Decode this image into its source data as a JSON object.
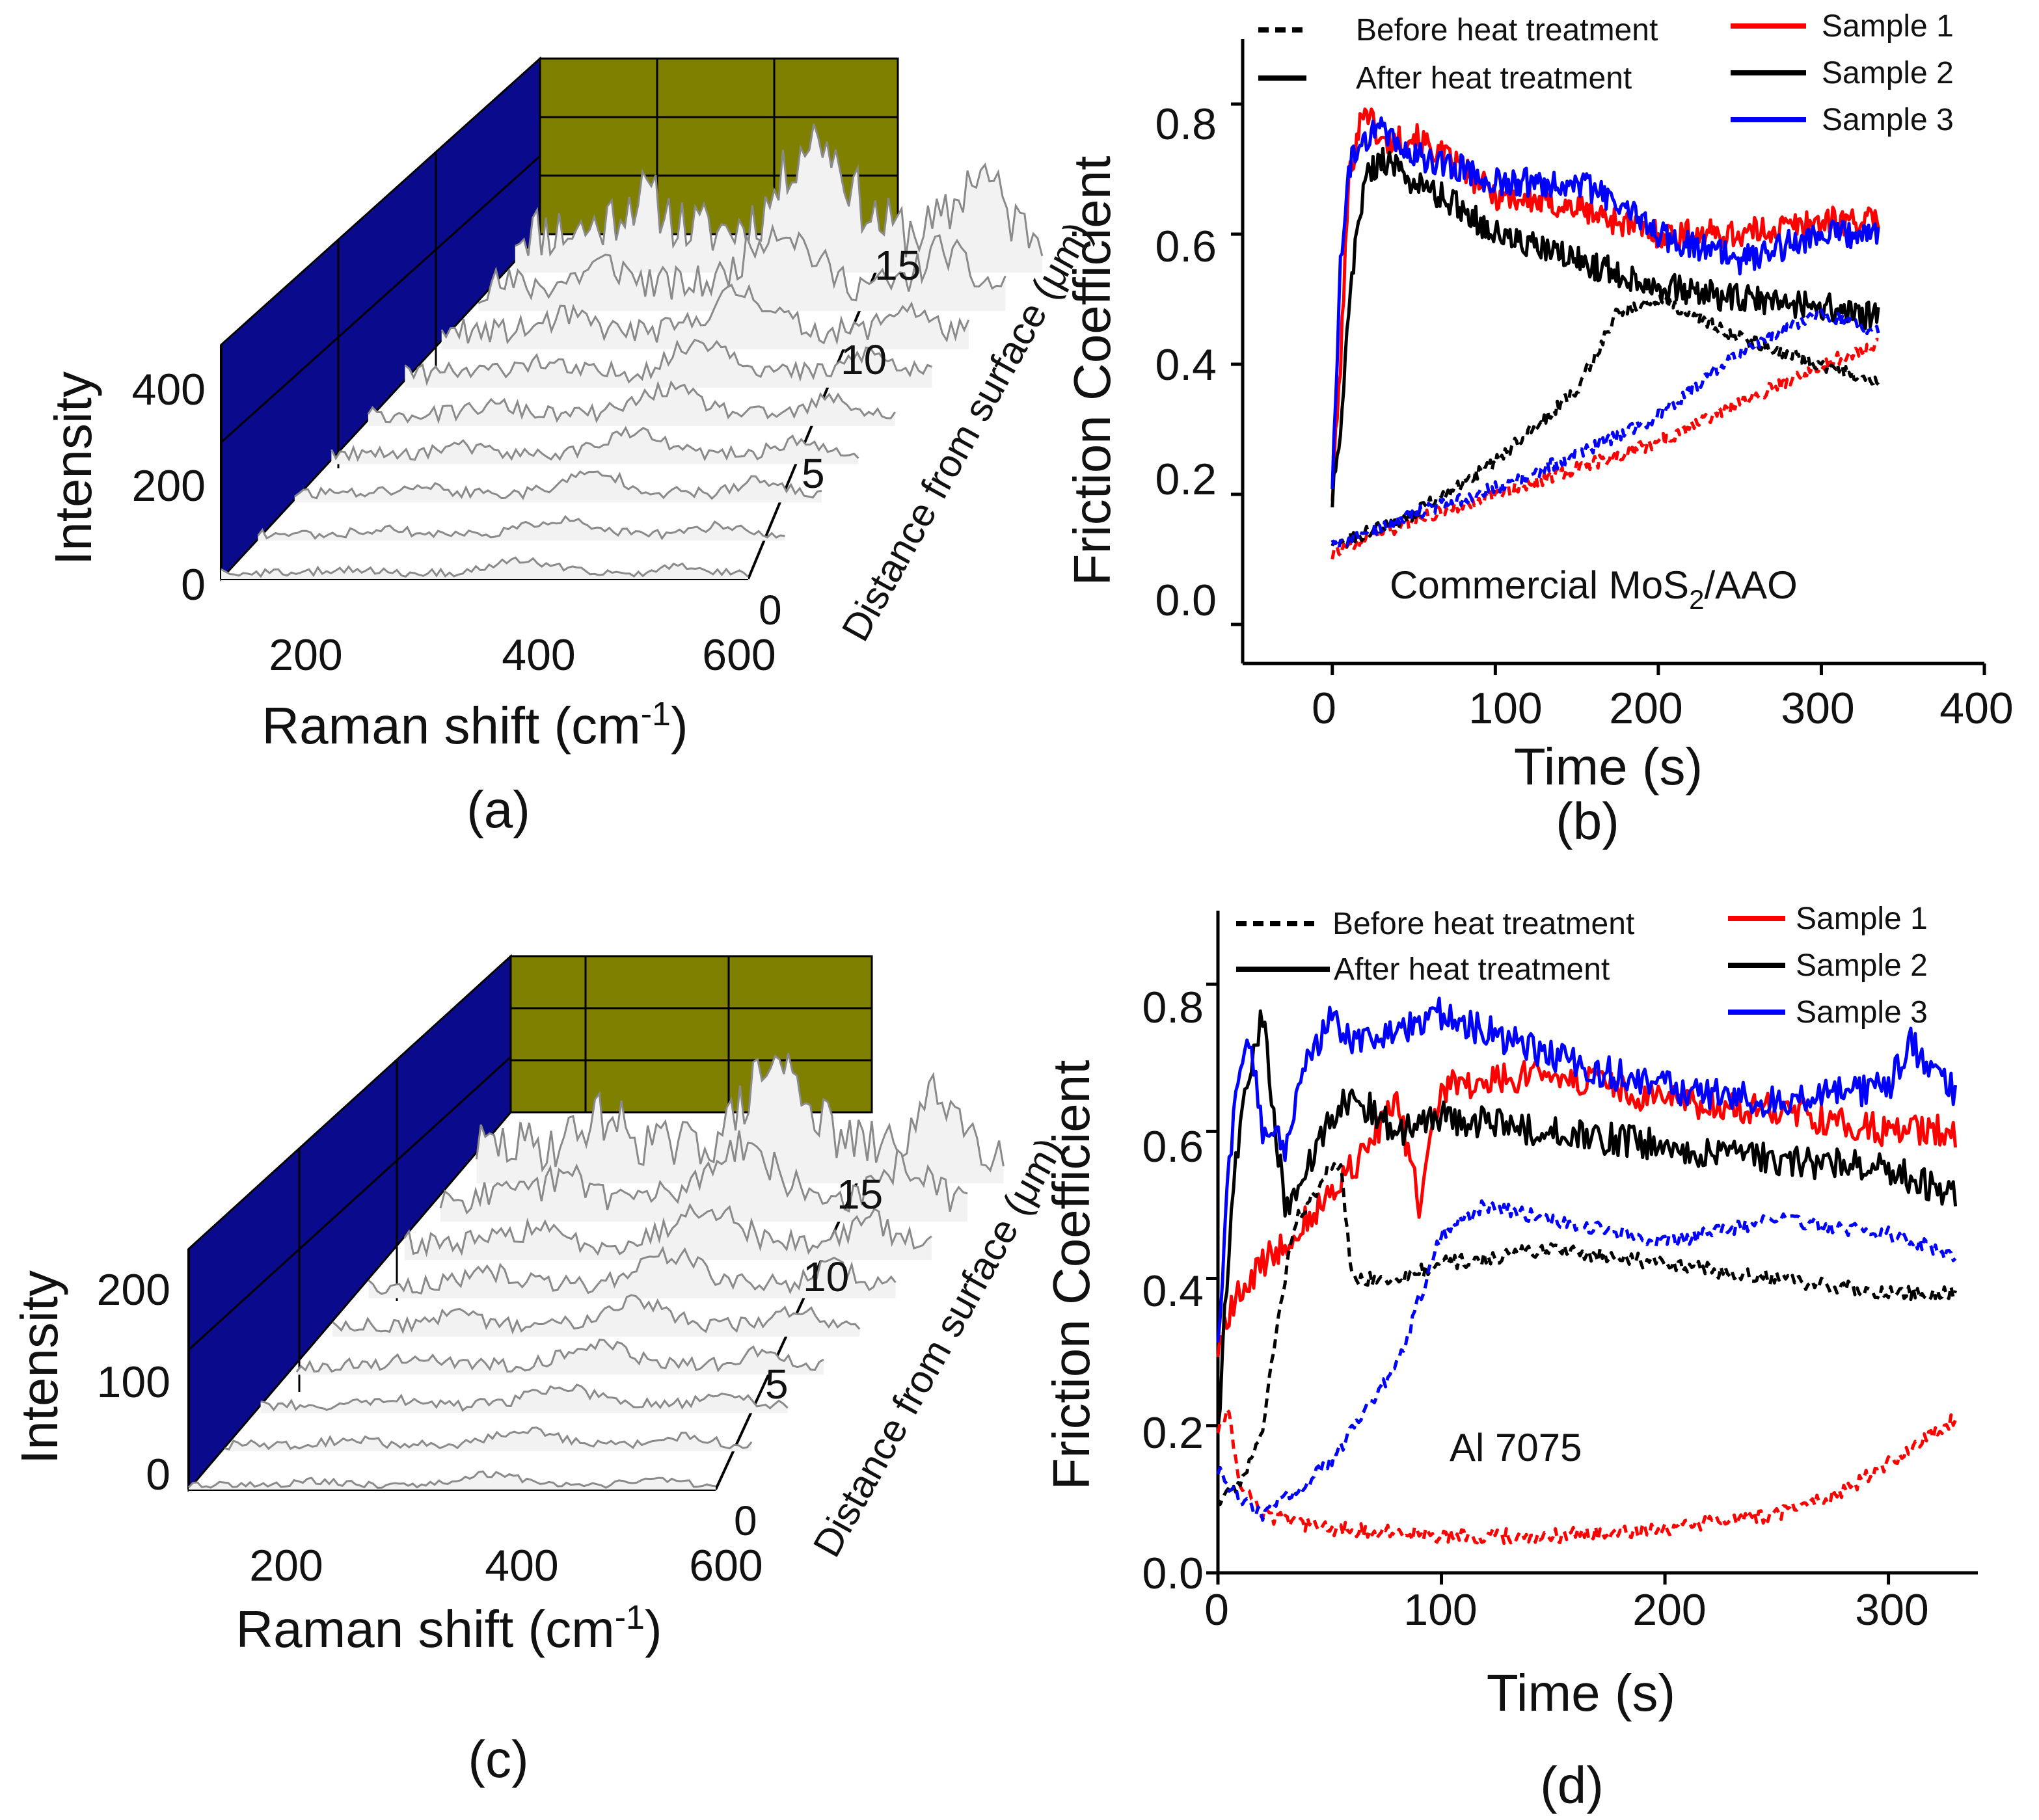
{
  "chart_data": [
    {
      "id": "a",
      "type": "waterfall-3d",
      "panel_label": "(a)",
      "xlabel": "Raman shift (cm",
      "xlabel_sup": "-1",
      "xlabel_end": ")",
      "ylabel": "Intensity",
      "zlabel": "Distance from surface (μm)",
      "xticks": [
        "200",
        "400",
        "600"
      ],
      "yticks": [
        "0",
        "200",
        "400"
      ],
      "zticks": [
        "0",
        "5",
        "10",
        "15"
      ],
      "xlim": [
        100,
        600
      ],
      "ylim": [
        0,
        500
      ],
      "zlim": [
        0,
        17
      ],
      "spectra_depths": [
        0,
        2,
        4,
        6,
        8,
        10,
        12,
        14,
        16
      ],
      "peak_scale": [
        35,
        40,
        55,
        60,
        70,
        90,
        110,
        160,
        260
      ]
    },
    {
      "id": "b",
      "type": "line",
      "panel_label": "(b)",
      "title": "",
      "annotation": "Commercial MoS",
      "annotation_sub": "2",
      "annotation_end": "/AAO",
      "xlabel": "Time (s)",
      "ylabel": "Friction Coefficient",
      "xlim": [
        -55,
        400
      ],
      "ylim": [
        -0.06,
        0.9
      ],
      "xticks": [
        "0",
        "100",
        "200",
        "300",
        "400"
      ],
      "yticks": [
        "0.0",
        "0.2",
        "0.4",
        "0.6",
        "0.8"
      ],
      "legend": {
        "line_styles": [
          "Before heat treatment",
          "After heat treatment"
        ],
        "samples": [
          "Sample 1",
          "Sample 2",
          "Sample 3"
        ]
      },
      "series": [
        {
          "name": "Sample 1",
          "treatment": "after",
          "color": "#ff0000",
          "x": [
            0,
            5,
            10,
            15,
            20,
            30,
            50,
            80,
            100,
            150,
            200,
            250,
            300,
            335
          ],
          "y": [
            0.2,
            0.4,
            0.68,
            0.75,
            0.8,
            0.74,
            0.75,
            0.7,
            0.66,
            0.64,
            0.6,
            0.6,
            0.62,
            0.62
          ]
        },
        {
          "name": "Sample 2",
          "treatment": "after",
          "color": "#000000",
          "x": [
            0,
            5,
            10,
            15,
            20,
            30,
            50,
            80,
            100,
            150,
            200,
            250,
            300,
            335
          ],
          "y": [
            0.2,
            0.3,
            0.48,
            0.6,
            0.68,
            0.72,
            0.68,
            0.64,
            0.6,
            0.56,
            0.52,
            0.5,
            0.49,
            0.47
          ]
        },
        {
          "name": "Sample 3",
          "treatment": "after",
          "color": "#0000ff",
          "x": [
            0,
            5,
            10,
            15,
            20,
            30,
            50,
            80,
            100,
            150,
            180,
            200,
            250,
            300,
            335
          ],
          "y": [
            0.2,
            0.55,
            0.7,
            0.73,
            0.75,
            0.76,
            0.72,
            0.7,
            0.68,
            0.68,
            0.64,
            0.6,
            0.56,
            0.6,
            0.6
          ]
        },
        {
          "name": "Sample 1",
          "treatment": "before",
          "color": "#ff0000",
          "x": [
            0,
            20,
            50,
            100,
            150,
            200,
            250,
            300,
            335
          ],
          "y": [
            0.11,
            0.13,
            0.16,
            0.2,
            0.24,
            0.28,
            0.34,
            0.4,
            0.43
          ]
        },
        {
          "name": "Sample 2",
          "treatment": "before",
          "color": "#000000",
          "x": [
            0,
            20,
            50,
            100,
            150,
            175,
            200,
            250,
            300,
            335
          ],
          "y": [
            0.12,
            0.14,
            0.17,
            0.25,
            0.36,
            0.48,
            0.5,
            0.44,
            0.4,
            0.37
          ]
        },
        {
          "name": "Sample 3",
          "treatment": "before",
          "color": "#0000ff",
          "x": [
            0,
            20,
            50,
            100,
            150,
            200,
            250,
            300,
            335
          ],
          "y": [
            0.12,
            0.14,
            0.17,
            0.21,
            0.26,
            0.32,
            0.42,
            0.48,
            0.45
          ]
        }
      ]
    },
    {
      "id": "c",
      "type": "waterfall-3d",
      "panel_label": "(c)",
      "xlabel": "Raman shift (cm",
      "xlabel_sup": "-1",
      "xlabel_end": ")",
      "ylabel": "Intensity",
      "zlabel": "Distance from surface (μm)",
      "xticks": [
        "200",
        "400",
        "600"
      ],
      "yticks": [
        "0",
        "100",
        "200"
      ],
      "zticks": [
        "0",
        "5",
        "10",
        "15"
      ],
      "xlim": [
        100,
        600
      ],
      "ylim": [
        0,
        250
      ],
      "zlim": [
        0,
        17
      ],
      "spectra_depths": [
        0,
        2,
        4,
        6,
        8,
        10,
        12,
        14,
        16
      ],
      "peak_scale": [
        30,
        40,
        50,
        60,
        70,
        85,
        105,
        150,
        230
      ]
    },
    {
      "id": "d",
      "type": "line",
      "panel_label": "(d)",
      "title": "",
      "annotation": "Al 7075",
      "xlabel": "Time (s)",
      "ylabel": "Friction Coefficient",
      "xlim": [
        0,
        340
      ],
      "ylim": [
        0,
        0.9
      ],
      "xticks": [
        "0",
        "100",
        "200",
        "300"
      ],
      "yticks": [
        "0.0",
        "0.2",
        "0.4",
        "0.6",
        "0.8"
      ],
      "legend": {
        "line_styles": [
          "Before heat treatment",
          "After heat treatment"
        ],
        "samples": [
          "Sample 1",
          "Sample 2",
          "Sample 3"
        ]
      },
      "series": [
        {
          "name": "Sample 1",
          "treatment": "after",
          "color": "#ff0000",
          "x": [
            0,
            5,
            10,
            20,
            40,
            60,
            80,
            90,
            100,
            150,
            200,
            250,
            300,
            330
          ],
          "y": [
            0.3,
            0.35,
            0.38,
            0.42,
            0.48,
            0.55,
            0.64,
            0.5,
            0.66,
            0.68,
            0.64,
            0.63,
            0.6,
            0.6
          ]
        },
        {
          "name": "Sample 2",
          "treatment": "after",
          "color": "#000000",
          "x": [
            0,
            5,
            10,
            15,
            20,
            25,
            30,
            40,
            50,
            60,
            80,
            100,
            150,
            200,
            250,
            300,
            330
          ],
          "y": [
            0.18,
            0.45,
            0.62,
            0.7,
            0.76,
            0.62,
            0.5,
            0.55,
            0.62,
            0.65,
            0.6,
            0.62,
            0.6,
            0.58,
            0.56,
            0.55,
            0.51
          ]
        },
        {
          "name": "Sample 3",
          "treatment": "after",
          "color": "#0000ff",
          "x": [
            0,
            5,
            10,
            15,
            20,
            30,
            40,
            50,
            60,
            80,
            100,
            150,
            200,
            250,
            300,
            310,
            330
          ],
          "y": [
            0.3,
            0.55,
            0.7,
            0.72,
            0.6,
            0.58,
            0.7,
            0.75,
            0.72,
            0.74,
            0.76,
            0.7,
            0.66,
            0.64,
            0.66,
            0.72,
            0.65
          ]
        },
        {
          "name": "Sample 1",
          "treatment": "before",
          "color": "#ff0000",
          "x": [
            0,
            5,
            10,
            20,
            30,
            50,
            100,
            150,
            200,
            250,
            280,
            300,
            330
          ],
          "y": [
            0.2,
            0.22,
            0.12,
            0.08,
            0.07,
            0.06,
            0.05,
            0.05,
            0.06,
            0.08,
            0.11,
            0.15,
            0.21
          ]
        },
        {
          "name": "Sample 2",
          "treatment": "before",
          "color": "#000000",
          "x": [
            0,
            10,
            20,
            30,
            35,
            40,
            50,
            55,
            60,
            80,
            100,
            150,
            200,
            250,
            300,
            330
          ],
          "y": [
            0.1,
            0.12,
            0.2,
            0.4,
            0.48,
            0.5,
            0.55,
            0.55,
            0.4,
            0.4,
            0.42,
            0.44,
            0.42,
            0.4,
            0.38,
            0.38
          ]
        },
        {
          "name": "Sample 3",
          "treatment": "before",
          "color": "#0000ff",
          "x": [
            0,
            10,
            20,
            30,
            50,
            80,
            100,
            120,
            150,
            200,
            250,
            300,
            330
          ],
          "y": [
            0.14,
            0.1,
            0.08,
            0.1,
            0.15,
            0.28,
            0.46,
            0.5,
            0.48,
            0.45,
            0.48,
            0.46,
            0.43
          ]
        }
      ]
    }
  ]
}
